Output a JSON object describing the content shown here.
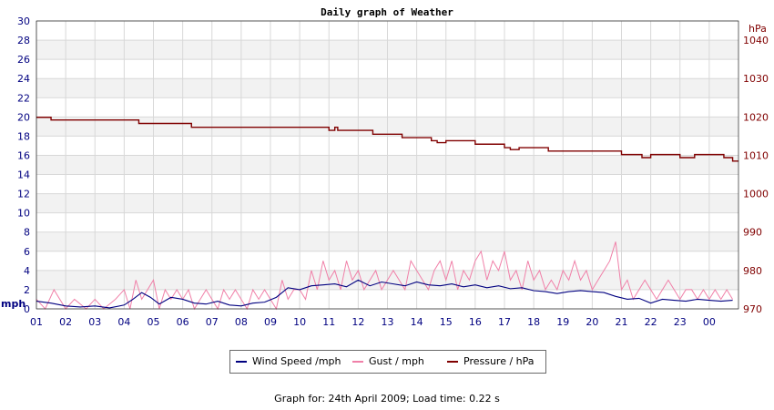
{
  "chart_data": {
    "type": "line",
    "title": "Daily graph of Weather",
    "left_axis": {
      "unit": "mph",
      "range": [
        0,
        30
      ],
      "ticks": [
        0,
        2,
        4,
        6,
        8,
        10,
        12,
        14,
        16,
        18,
        20,
        22,
        24,
        26,
        28,
        30
      ]
    },
    "right_axis": {
      "unit": "hPa",
      "range": [
        970,
        1045
      ],
      "ticks": [
        970,
        980,
        990,
        1000,
        1010,
        1020,
        1030,
        1040
      ]
    },
    "x_ticks": [
      "01",
      "02",
      "03",
      "04",
      "05",
      "06",
      "07",
      "08",
      "09",
      "10",
      "11",
      "12",
      "13",
      "14",
      "15",
      "16",
      "17",
      "18",
      "19",
      "20",
      "21",
      "22",
      "23",
      "00"
    ],
    "x_range_hours": [
      1,
      25
    ],
    "grid": true,
    "legend_placement": "bottom",
    "series": [
      {
        "name": "Wind Speed /mph",
        "axis": "left",
        "color": "#000080",
        "x": [
          1,
          1.5,
          2,
          2.5,
          3,
          3.5,
          4,
          4.3,
          4.6,
          4.9,
          5.2,
          5.6,
          6,
          6.4,
          6.8,
          7.2,
          7.6,
          8,
          8.4,
          8.8,
          9.2,
          9.6,
          10,
          10.4,
          10.8,
          11.2,
          11.6,
          12,
          12.4,
          12.8,
          13.2,
          13.6,
          14,
          14.4,
          14.8,
          15.2,
          15.6,
          16,
          16.4,
          16.8,
          17.2,
          17.6,
          18,
          18.4,
          18.8,
          19.2,
          19.6,
          20,
          20.4,
          20.8,
          21.2,
          21.6,
          22,
          22.4,
          22.8,
          23.2,
          23.6,
          24,
          24.4,
          24.8
        ],
        "values": [
          0.8,
          0.6,
          0.3,
          0.2,
          0.3,
          0.1,
          0.4,
          1.0,
          1.7,
          1.2,
          0.5,
          1.2,
          1.0,
          0.6,
          0.5,
          0.8,
          0.4,
          0.3,
          0.6,
          0.7,
          1.2,
          2.2,
          2.0,
          2.4,
          2.5,
          2.6,
          2.3,
          3.0,
          2.4,
          2.8,
          2.6,
          2.4,
          2.8,
          2.5,
          2.4,
          2.6,
          2.3,
          2.5,
          2.2,
          2.4,
          2.1,
          2.2,
          1.9,
          1.8,
          1.6,
          1.8,
          1.9,
          1.8,
          1.7,
          1.3,
          1.0,
          1.1,
          0.6,
          1.0,
          0.9,
          0.8,
          1.0,
          0.9,
          0.8,
          0.9
        ]
      },
      {
        "name": "Gust / mph",
        "axis": "left",
        "color": "#f080a8",
        "x": [
          1,
          1.3,
          1.6,
          2,
          2.3,
          2.7,
          3,
          3.3,
          3.7,
          4,
          4.2,
          4.4,
          4.6,
          4.8,
          5,
          5.2,
          5.4,
          5.6,
          5.8,
          6,
          6.2,
          6.4,
          6.6,
          6.8,
          7,
          7.2,
          7.4,
          7.6,
          7.8,
          8,
          8.2,
          8.4,
          8.6,
          8.8,
          9,
          9.2,
          9.4,
          9.6,
          9.8,
          10,
          10.2,
          10.4,
          10.6,
          10.8,
          11,
          11.2,
          11.4,
          11.6,
          11.8,
          12,
          12.2,
          12.4,
          12.6,
          12.8,
          13,
          13.2,
          13.4,
          13.6,
          13.8,
          14,
          14.2,
          14.4,
          14.6,
          14.8,
          15,
          15.2,
          15.4,
          15.6,
          15.8,
          16,
          16.2,
          16.4,
          16.6,
          16.8,
          17,
          17.2,
          17.4,
          17.6,
          17.8,
          18,
          18.2,
          18.4,
          18.6,
          18.8,
          19,
          19.2,
          19.4,
          19.6,
          19.8,
          20,
          20.2,
          20.4,
          20.6,
          20.8,
          21,
          21.2,
          21.4,
          21.6,
          21.8,
          22,
          22.2,
          22.4,
          22.6,
          22.8,
          23,
          23.2,
          23.4,
          23.6,
          23.8,
          24,
          24.2,
          24.4,
          24.6,
          24.8
        ],
        "values": [
          1,
          0,
          2,
          0,
          1,
          0,
          1,
          0,
          1,
          2,
          0,
          3,
          1,
          2,
          3,
          0,
          2,
          1,
          2,
          1,
          2,
          0,
          1,
          2,
          1,
          0,
          2,
          1,
          2,
          1,
          0,
          2,
          1,
          2,
          1,
          0,
          3,
          1,
          2,
          2,
          1,
          4,
          2,
          5,
          3,
          4,
          2,
          5,
          3,
          4,
          2,
          3,
          4,
          2,
          3,
          4,
          3,
          2,
          5,
          4,
          3,
          2,
          4,
          5,
          3,
          5,
          2,
          4,
          3,
          5,
          6,
          3,
          5,
          4,
          6,
          3,
          4,
          2,
          5,
          3,
          4,
          2,
          3,
          2,
          4,
          3,
          5,
          3,
          4,
          2,
          3,
          4,
          5,
          7,
          2,
          3,
          1,
          2,
          3,
          2,
          1,
          2,
          3,
          2,
          1,
          2,
          2,
          1,
          2,
          1,
          2,
          1,
          2,
          1
        ]
      },
      {
        "name": "Pressure / hPa",
        "axis": "right",
        "color": "#800000",
        "x": [
          1,
          1.2,
          1.5,
          2,
          3,
          4,
          4.2,
          4.5,
          5,
          6,
          6.3,
          7,
          8,
          9,
          10,
          10.9,
          11,
          11.2,
          11.3,
          11.5,
          12,
          12.5,
          13,
          13.5,
          14,
          14.5,
          14.7,
          15,
          15.5,
          16,
          16.5,
          17,
          17.2,
          17.5,
          18,
          18.5,
          18.7,
          19,
          20,
          20.5,
          21,
          21.5,
          21.7,
          22,
          22.3,
          22.5,
          23,
          23.5,
          24,
          24.5,
          24.8
        ],
        "values": [
          1019.9,
          1019.9,
          1019.2,
          1019.2,
          1019.2,
          1019.2,
          1019.2,
          1018.3,
          1018.3,
          1018.3,
          1017.3,
          1017.3,
          1017.3,
          1017.3,
          1017.3,
          1017.3,
          1016.5,
          1017.3,
          1016.5,
          1016.5,
          1016.5,
          1015.5,
          1015.5,
          1014.6,
          1014.6,
          1013.8,
          1013.3,
          1013.8,
          1013.8,
          1012.9,
          1012.9,
          1012.0,
          1011.5,
          1012.0,
          1012.0,
          1011.1,
          1011.1,
          1011.1,
          1011.1,
          1011.1,
          1010.2,
          1010.2,
          1009.4,
          1010.2,
          1010.2,
          1010.2,
          1009.4,
          1010.2,
          1010.2,
          1009.4,
          1008.5
        ]
      }
    ]
  },
  "legend": {
    "wind": "Wind Speed /mph",
    "gust": "Gust / mph",
    "pressure": "Pressure / hPa"
  },
  "footer": "Graph for: 24th April 2009; Load time: 0.22 s",
  "colors": {
    "wind": "#000080",
    "gust": "#f080a8",
    "pressure": "#800000",
    "grid": "#d8d8d8",
    "band": "#f2f2f2"
  }
}
